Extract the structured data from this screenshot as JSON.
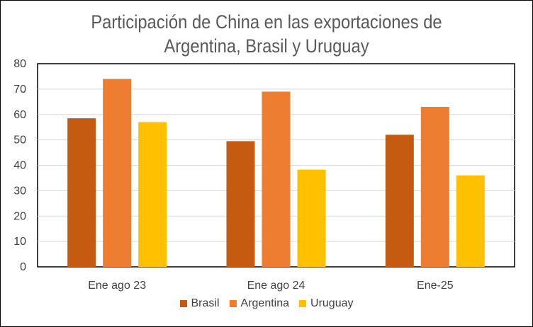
{
  "chart_data": {
    "type": "bar",
    "title_line1": "Participación de China en las exportaciones de",
    "title_line2": "Argentina, Brasil y Uruguay",
    "categories": [
      "Ene ago 23",
      "Ene ago 24",
      "Ene-25"
    ],
    "series": [
      {
        "name": "Brasil",
        "color": "#C55A11",
        "values": [
          58.5,
          49.5,
          52
        ]
      },
      {
        "name": "Argentina",
        "color": "#ED7D31",
        "values": [
          74,
          69,
          63
        ]
      },
      {
        "name": "Uruguay",
        "color": "#FFC000",
        "values": [
          57,
          38.3,
          36
        ]
      }
    ],
    "ylim": [
      0,
      80
    ],
    "yticks": [
      "0",
      "10",
      "20",
      "30",
      "40",
      "50",
      "60",
      "70",
      "80"
    ],
    "grid": true,
    "legend_position": "bottom"
  }
}
